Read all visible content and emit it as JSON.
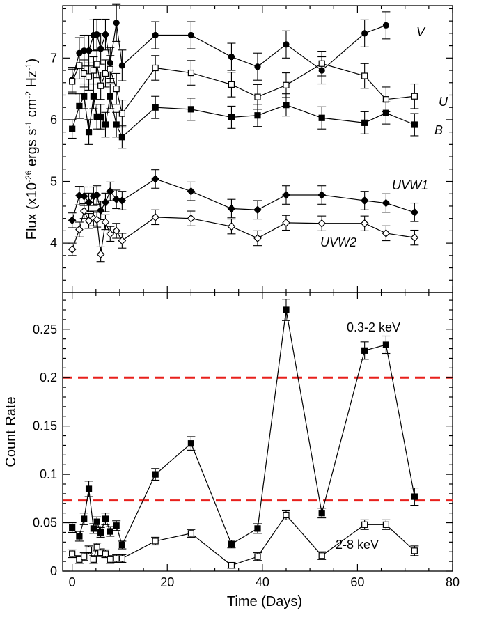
{
  "chart_data": [
    {
      "type": "scatter",
      "panel": "top",
      "ylabel_parts": [
        "Flux (x10",
        "-26",
        " ergs s",
        "-1",
        " cm",
        "-2",
        " Hz",
        "-1",
        ")"
      ],
      "xlim": [
        -2,
        80
      ],
      "ylim": [
        3.2,
        7.85
      ],
      "yticks": [
        4,
        5,
        6,
        7
      ],
      "error_bars": true,
      "series": [
        {
          "name": "V",
          "marker": "filled-circle",
          "x": [
            0,
            1.5,
            2.5,
            3.5,
            4.5,
            5.2,
            6.0,
            7.0,
            8.0,
            9.3,
            10.5,
            17.5,
            25,
            33.5,
            39,
            45,
            52.5,
            61.5,
            66,
            72
          ],
          "y": [
            6.65,
            7.08,
            7.12,
            7.12,
            7.37,
            7.38,
            7.15,
            7.38,
            6.92,
            7.57,
            6.88,
            7.37,
            7.37,
            7.02,
            6.86,
            7.22,
            6.8,
            7.4,
            7.53,
            null
          ],
          "err": [
            0.2,
            0.25,
            0.25,
            0.25,
            0.25,
            0.25,
            0.25,
            0.25,
            0.25,
            0.3,
            0.25,
            0.22,
            0.22,
            0.22,
            0.22,
            0.22,
            0.22,
            0.22,
            0.22,
            null
          ]
        },
        {
          "name": "U",
          "marker": "open-square",
          "x": [
            0,
            1.5,
            2.5,
            3.5,
            4.5,
            5.2,
            6.0,
            7.0,
            8.0,
            9.3,
            10.5,
            17.5,
            25,
            33.5,
            39,
            45,
            52.5,
            61.5,
            66,
            72
          ],
          "y": [
            6.62,
            6.88,
            6.75,
            6.7,
            6.8,
            6.9,
            6.55,
            6.75,
            6.82,
            6.5,
            6.1,
            6.84,
            6.76,
            6.57,
            6.37,
            6.56,
            6.91,
            6.71,
            6.33,
            6.38
          ],
          "err": [
            0.2,
            0.22,
            0.22,
            0.22,
            0.22,
            0.22,
            0.22,
            0.22,
            0.22,
            0.25,
            0.22,
            0.2,
            0.2,
            0.2,
            0.2,
            0.2,
            0.2,
            0.2,
            0.2,
            0.2
          ]
        },
        {
          "name": "B",
          "marker": "filled-square",
          "x": [
            0,
            1.5,
            2.5,
            3.5,
            4.5,
            5.2,
            6.0,
            7.0,
            8.0,
            9.3,
            10.5,
            17.5,
            25,
            33.5,
            39,
            45,
            52.5,
            61.5,
            66,
            72
          ],
          "y": [
            5.85,
            6.22,
            6.38,
            5.8,
            6.38,
            6.05,
            6.05,
            5.92,
            6.38,
            5.92,
            5.72,
            6.2,
            6.17,
            6.04,
            6.07,
            6.24,
            6.03,
            5.95,
            6.11,
            5.92
          ],
          "err": [
            0.15,
            0.2,
            0.2,
            0.2,
            0.2,
            0.2,
            0.2,
            0.2,
            0.2,
            0.2,
            0.18,
            0.18,
            0.18,
            0.18,
            0.18,
            0.18,
            0.18,
            0.18,
            0.18,
            0.18
          ]
        },
        {
          "name": "UVW1",
          "marker": "filled-diamond",
          "x": [
            0,
            1.5,
            2.5,
            3.5,
            4.5,
            5.2,
            6.0,
            7.0,
            8.0,
            9.3,
            10.5,
            17.5,
            25,
            33.5,
            39,
            45,
            52.5,
            61.5,
            66,
            72
          ],
          "y": [
            4.37,
            4.77,
            4.76,
            4.66,
            4.76,
            4.78,
            4.53,
            4.66,
            4.84,
            4.71,
            4.69,
            5.04,
            4.84,
            4.56,
            4.54,
            4.78,
            4.78,
            4.69,
            4.65,
            4.5
          ],
          "err": [
            0.12,
            0.15,
            0.15,
            0.15,
            0.15,
            0.15,
            0.15,
            0.15,
            0.15,
            0.15,
            0.15,
            0.15,
            0.15,
            0.15,
            0.15,
            0.15,
            0.15,
            0.15,
            0.15,
            0.15
          ]
        },
        {
          "name": "UVW2",
          "marker": "open-diamond",
          "x": [
            0,
            1.5,
            2.5,
            3.5,
            4.5,
            5.2,
            6.0,
            7.0,
            8.0,
            9.3,
            10.5,
            17.5,
            25,
            33.5,
            39,
            45,
            52.5,
            61.5,
            66,
            72
          ],
          "y": [
            3.9,
            4.22,
            4.52,
            4.36,
            4.4,
            4.38,
            3.82,
            4.34,
            4.15,
            4.2,
            4.04,
            4.42,
            4.4,
            4.27,
            4.08,
            4.33,
            4.32,
            4.32,
            4.16,
            4.09
          ],
          "err": [
            0.1,
            0.12,
            0.12,
            0.12,
            0.12,
            0.12,
            0.12,
            0.12,
            0.12,
            0.12,
            0.12,
            0.12,
            0.12,
            0.12,
            0.12,
            0.12,
            0.12,
            0.12,
            0.12,
            0.12
          ]
        }
      ],
      "annotations": [
        "V",
        "U",
        "B",
        "UVW1",
        "UVW2"
      ]
    },
    {
      "type": "scatter",
      "panel": "bottom",
      "xlabel": "Time (Days)",
      "ylabel": "Count Rate",
      "xlim": [
        -2,
        80
      ],
      "ylim": [
        0,
        0.288
      ],
      "xticks": [
        0,
        20,
        40,
        60,
        80
      ],
      "ytick_labels": [
        "0",
        "0.05",
        "0.1",
        "0.15",
        "0.2",
        "0.25"
      ],
      "error_bars": true,
      "series": [
        {
          "name": "0.3-2 keV",
          "marker": "filled-square",
          "x": [
            0,
            1.5,
            2.5,
            3.5,
            4.5,
            5.2,
            6.0,
            7.0,
            8.0,
            9.3,
            10.5,
            17.5,
            25,
            33.5,
            39,
            45,
            52.5,
            61.5,
            66,
            72
          ],
          "y": [
            0.045,
            0.036,
            0.054,
            0.085,
            0.044,
            0.051,
            0.04,
            0.054,
            0.041,
            0.047,
            0.027,
            0.1,
            0.132,
            0.028,
            0.044,
            0.27,
            0.06,
            0.228,
            0.234,
            0.077
          ],
          "err": [
            0.005,
            0.005,
            0.006,
            0.008,
            0.005,
            0.005,
            0.005,
            0.006,
            0.005,
            0.005,
            0.004,
            0.006,
            0.007,
            0.004,
            0.005,
            0.011,
            0.005,
            0.009,
            0.009,
            0.009
          ]
        },
        {
          "name": "2-8 keV",
          "marker": "open-square",
          "x": [
            0,
            1.5,
            2.5,
            3.5,
            4.5,
            5.2,
            6.0,
            7.0,
            8.0,
            9.3,
            10.5,
            17.5,
            25,
            33.5,
            39,
            45,
            52.5,
            61.5,
            66,
            72
          ],
          "y": [
            0.018,
            0.012,
            0.015,
            0.022,
            0.012,
            0.025,
            0.019,
            0.018,
            0.012,
            0.013,
            0.013,
            0.031,
            0.039,
            0.006,
            0.015,
            0.058,
            0.016,
            0.048,
            0.048,
            0.021
          ],
          "err": [
            0.004,
            0.004,
            0.004,
            0.004,
            0.004,
            0.004,
            0.004,
            0.004,
            0.004,
            0.004,
            0.004,
            0.004,
            0.004,
            0.003,
            0.004,
            0.005,
            0.004,
            0.005,
            0.005,
            0.005
          ]
        }
      ],
      "reference_lines": [
        {
          "y": 0.2,
          "style": "dashed",
          "color": "#e8201c"
        },
        {
          "y": 0.073,
          "style": "dashed",
          "color": "#e8201c"
        }
      ],
      "annotations": [
        "0.3-2 keV",
        "2-8 keV"
      ]
    }
  ]
}
